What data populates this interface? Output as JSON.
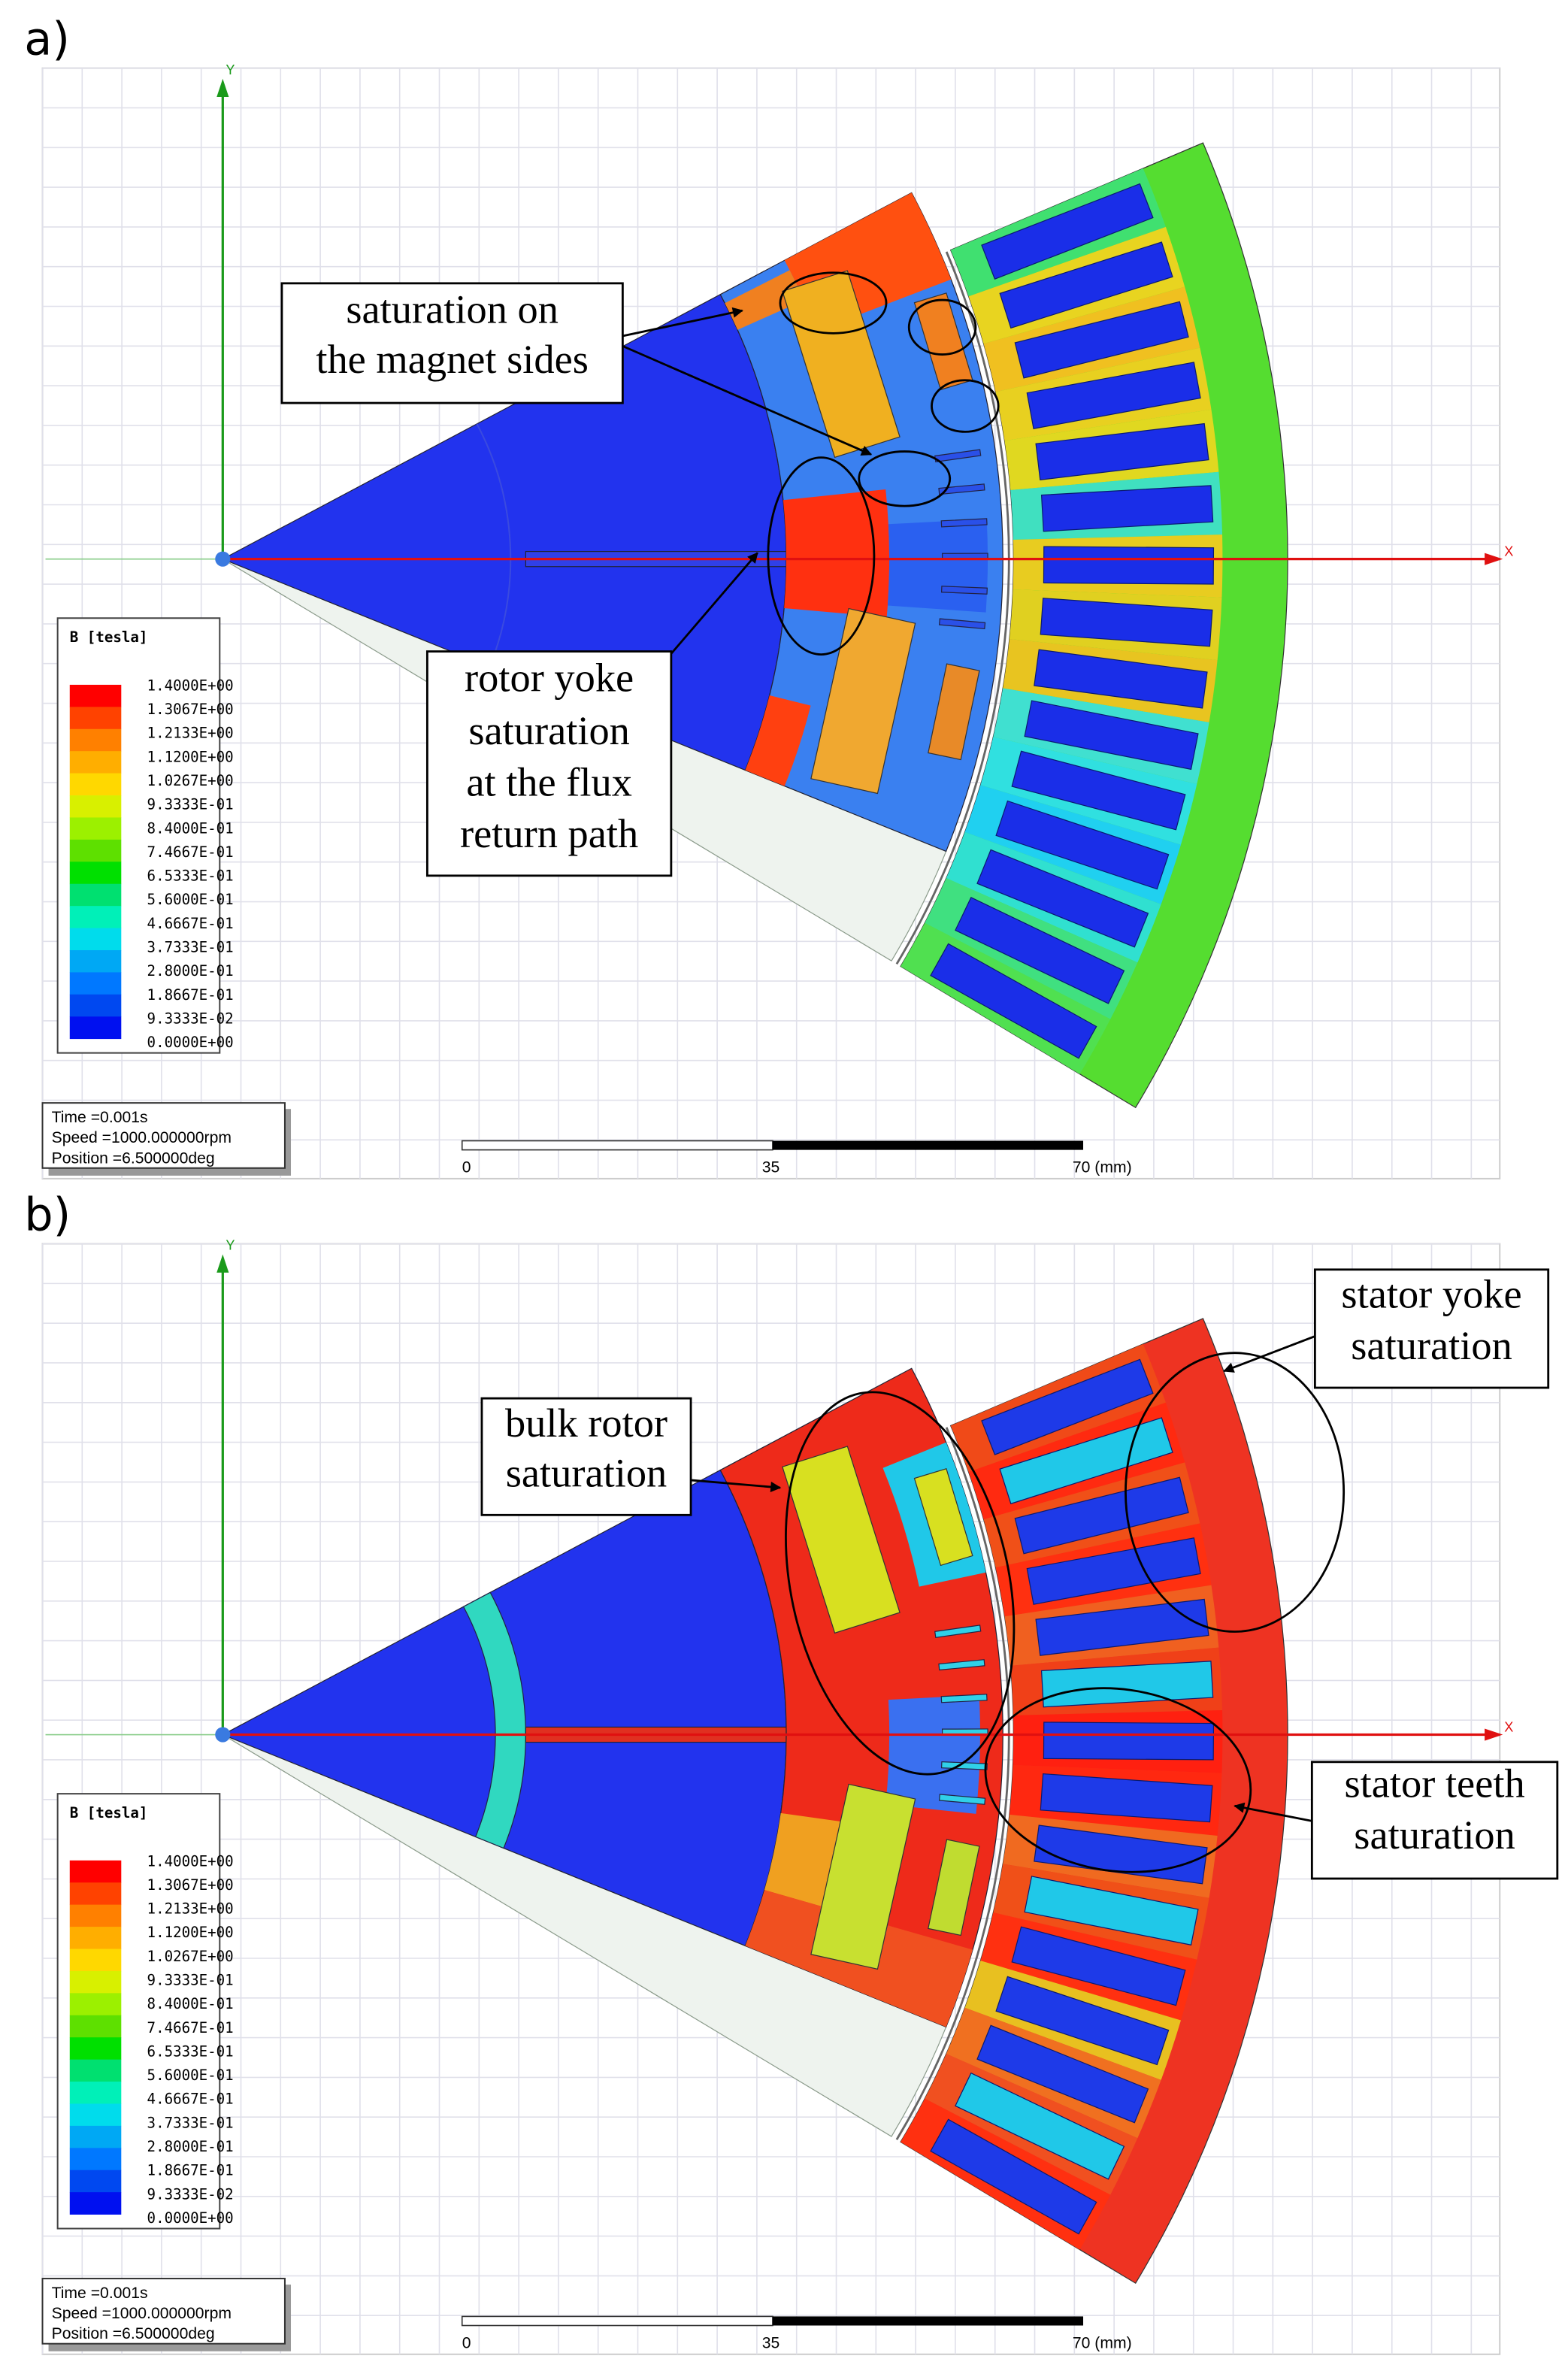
{
  "panels": [
    {
      "label": "a)",
      "axis_y": "Y",
      "axis_x": "X",
      "legend": {
        "title": "B [tesla]",
        "values": [
          "1.4000E+00",
          "1.3067E+00",
          "1.2133E+00",
          "1.1200E+00",
          "1.0267E+00",
          "9.3333E-01",
          "8.4000E-01",
          "7.4667E-01",
          "6.5333E-01",
          "5.6000E-01",
          "4.6667E-01",
          "3.7333E-01",
          "2.8000E-01",
          "1.8667E-01",
          "9.3333E-02",
          "0.0000E+00"
        ],
        "colors": [
          "#ff0000",
          "#ff4200",
          "#ff8000",
          "#ffae00",
          "#ffd800",
          "#d8f000",
          "#9cf000",
          "#5ee000",
          "#00e000",
          "#00e070",
          "#00f0b8",
          "#00dcec",
          "#00a8f4",
          "#0078ff",
          "#0048f0",
          "#0010f0"
        ]
      },
      "info": [
        "Time =0.001s",
        "Speed =1000.000000rpm",
        "Position =6.500000deg"
      ],
      "scale": [
        "0",
        "35",
        "70 (mm)"
      ],
      "annotations": [
        {
          "lines": [
            "saturation on",
            "the magnet sides"
          ]
        },
        {
          "lines": [
            "rotor yoke",
            "saturation",
            "at the flux",
            "return path"
          ]
        }
      ]
    },
    {
      "label": "b)",
      "axis_y": "Y",
      "axis_x": "X",
      "legend": {
        "title": "B [tesla]",
        "values": [
          "1.4000E+00",
          "1.3067E+00",
          "1.2133E+00",
          "1.1200E+00",
          "1.0267E+00",
          "9.3333E-01",
          "8.4000E-01",
          "7.4667E-01",
          "6.5333E-01",
          "5.6000E-01",
          "4.6667E-01",
          "3.7333E-01",
          "2.8000E-01",
          "1.8667E-01",
          "9.3333E-02",
          "0.0000E+00"
        ],
        "colors": [
          "#ff0000",
          "#ff4200",
          "#ff8000",
          "#ffae00",
          "#ffd800",
          "#d8f000",
          "#9cf000",
          "#5ee000",
          "#00e000",
          "#00e070",
          "#00f0b8",
          "#00dcec",
          "#00a8f4",
          "#0078ff",
          "#0048f0",
          "#0010f0"
        ]
      },
      "info": [
        "Time =0.001s",
        "Speed =1000.000000rpm",
        "Position =6.500000deg"
      ],
      "scale": [
        "0",
        "35",
        "70 (mm)"
      ],
      "annotations": [
        {
          "lines": [
            "bulk rotor",
            "saturation"
          ]
        },
        {
          "lines": [
            "stator yoke",
            "saturation"
          ]
        },
        {
          "lines": [
            "stator teeth",
            "saturation"
          ]
        }
      ]
    }
  ]
}
